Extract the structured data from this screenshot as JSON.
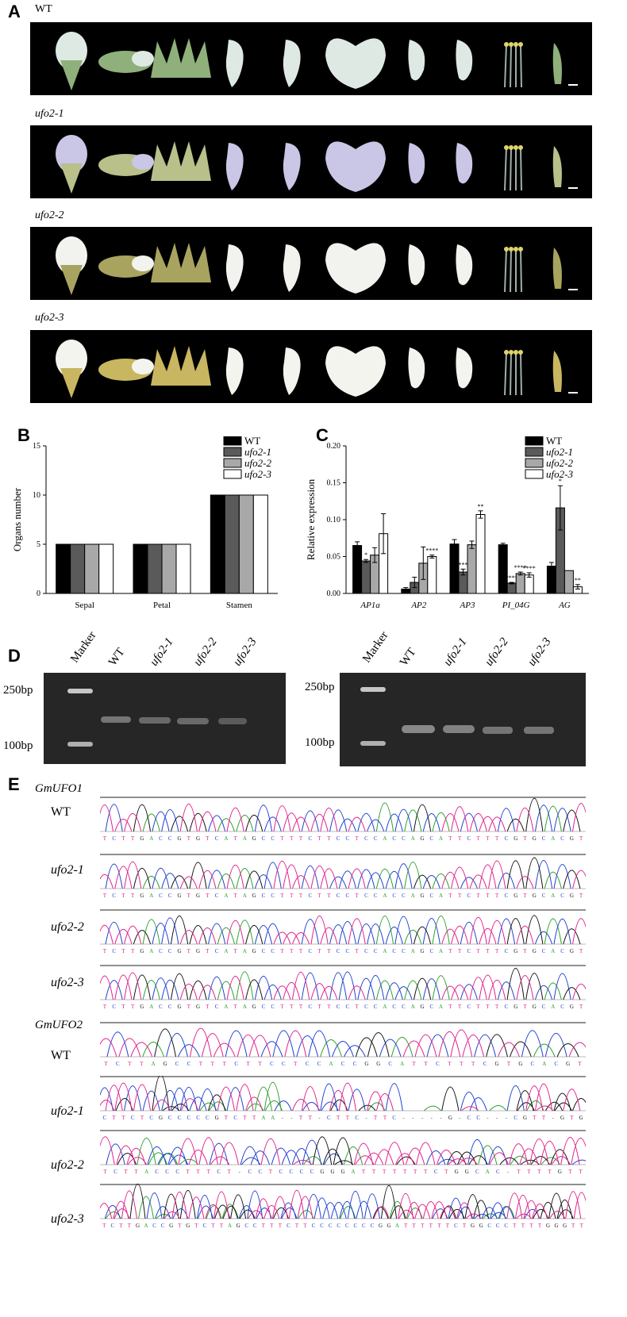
{
  "panels": {
    "a": {
      "letter": "A",
      "rows": [
        {
          "label": "WT",
          "organs": [
            "flower",
            "keel",
            "calyx",
            "wing",
            "wing",
            "standard",
            "petal",
            "petal",
            "stamens",
            "pistil"
          ]
        },
        {
          "label": "ufo2-1",
          "organs": [
            "flower",
            "keel",
            "calyx",
            "wing",
            "wing",
            "standard",
            "petal",
            "petal",
            "stamens",
            "pistil"
          ]
        },
        {
          "label": "ufo2-2",
          "organs": [
            "flower",
            "keel",
            "calyx",
            "wing",
            "wing",
            "standard",
            "petal",
            "petal",
            "stamens",
            "pistil"
          ]
        },
        {
          "label": "ufo2-3",
          "organs": [
            "flower",
            "keel",
            "calyx",
            "wing",
            "wing",
            "standard",
            "petal",
            "petal",
            "stamens",
            "pistil"
          ]
        }
      ]
    },
    "b": {
      "letter": "B"
    },
    "c": {
      "letter": "C"
    },
    "d": {
      "letter": "D",
      "gels": [
        {
          "lanes": [
            "Marker",
            "WT",
            "ufo2-1",
            "ufo2-2",
            "ufo2-3"
          ],
          "marker_labels": [
            "250bp",
            "100bp"
          ]
        },
        {
          "lanes": [
            "Marker",
            "WT",
            "ufo2-1",
            "ufo2-2",
            "ufo2-3"
          ],
          "marker_labels": [
            "250bp",
            "100bp"
          ]
        }
      ]
    },
    "e": {
      "letter": "E",
      "genes": [
        {
          "name": "GmUFO1",
          "tracks": [
            {
              "label": "WT",
              "seq": "TCTTGACCGTGTCATAGCCTTTCTTCCTCCACCAGCATTCTTTCGTGCACGT"
            },
            {
              "label": "ufo2-1",
              "seq": "TCTTGACCGTGTCATAGCCTTTCTTCCTCCACCAGCATTCTTTCGTGCACGT"
            },
            {
              "label": "ufo2-2",
              "seq": "TCTTGACCGTGTCATAGCCTTTCTTCCTCCACCAGCATTCTTTCGTGCACGT"
            },
            {
              "label": "ufo2-3",
              "seq": "TCTTGACCGTGTCATAGCCTTTCTTCCTCCACCAGCATTCTTTCGTGCACGT"
            }
          ]
        },
        {
          "name": "GmUFO2",
          "tracks": [
            {
              "label": "WT",
              "seq": "TCTTAGCCTTTCTTCCTCCACCGGCATTCTTTCGTGCACGT"
            },
            {
              "label": "ufo2-1",
              "seq": "CTTCTCGCCCCCGTCTTAA--TT-CTTC-TTC-----G-CC---CGTT-GTG"
            },
            {
              "label": "ufo2-2",
              "seq": "TCTTACCCTTTCT-CCTCCCCGGGATTTTTTTCTGGCAC-TTTTGTT"
            },
            {
              "label": "ufo2-3",
              "seq": "TCTTGACCGTGTCTTAGCCTTTCTTCCCCCCCCGGATTTTTTCTGGCCCTTTTGGGTT"
            }
          ]
        }
      ]
    }
  },
  "colors": {
    "A": "#2ca02c",
    "C": "#1f3fd0",
    "G": "#111111",
    "T": "#e0208c"
  },
  "chart_data": [
    {
      "type": "bar",
      "panel": "B",
      "categories": [
        "Sepal",
        "Petal",
        "Stamen"
      ],
      "series": [
        {
          "name": "WT",
          "values": [
            5,
            5,
            10
          ],
          "color": "#000000"
        },
        {
          "name": "ufo2-1",
          "values": [
            5,
            5,
            10
          ],
          "color": "#5a5a5a"
        },
        {
          "name": "ufo2-2",
          "values": [
            5,
            5,
            10
          ],
          "color": "#a8a8a8"
        },
        {
          "name": "ufo2-3",
          "values": [
            5,
            5,
            10
          ],
          "color": "#ffffff"
        }
      ],
      "ylabel": "Organs number",
      "ylim": [
        0,
        15
      ],
      "yticks": [
        0,
        5,
        10,
        15
      ],
      "legend": "top-right",
      "grid": false
    },
    {
      "type": "bar",
      "panel": "C",
      "categories": [
        "AP1a",
        "AP2",
        "AP3",
        "PI_04G",
        "AG"
      ],
      "series": [
        {
          "name": "WT",
          "values": [
            0.065,
            0.006,
            0.067,
            0.066,
            0.037
          ],
          "errors": [
            0.005,
            0.002,
            0.006,
            0.002,
            0.005
          ],
          "sig": [
            "",
            "",
            "",
            "",
            ""
          ],
          "color": "#000000"
        },
        {
          "name": "ufo2-1",
          "values": [
            0.044,
            0.015,
            0.029,
            0.014,
            0.116
          ],
          "errors": [
            0.002,
            0.007,
            0.004,
            0.001,
            0.03
          ],
          "sig": [
            "*",
            "",
            "***",
            "****",
            "*"
          ],
          "color": "#5a5a5a"
        },
        {
          "name": "ufo2-2",
          "values": [
            0.052,
            0.041,
            0.066,
            0.027,
            0.031
          ],
          "errors": [
            0.01,
            0.022,
            0.005,
            0.002,
            0.0
          ],
          "sig": [
            "",
            "",
            "",
            "****",
            ""
          ],
          "color": "#a8a8a8"
        },
        {
          "name": "ufo2-3",
          "values": [
            0.081,
            0.05,
            0.107,
            0.025,
            0.009
          ],
          "errors": [
            0.027,
            0.002,
            0.005,
            0.003,
            0.003
          ],
          "sig": [
            "",
            "****",
            "**",
            "****",
            "**"
          ],
          "color": "#ffffff"
        }
      ],
      "ylabel": "Relative expression",
      "ylim": [
        0,
        0.2
      ],
      "yticks": [
        "0.00",
        "0.05",
        "0.10",
        "0.15",
        "0.20"
      ],
      "legend": "top-right",
      "grid": false
    }
  ]
}
